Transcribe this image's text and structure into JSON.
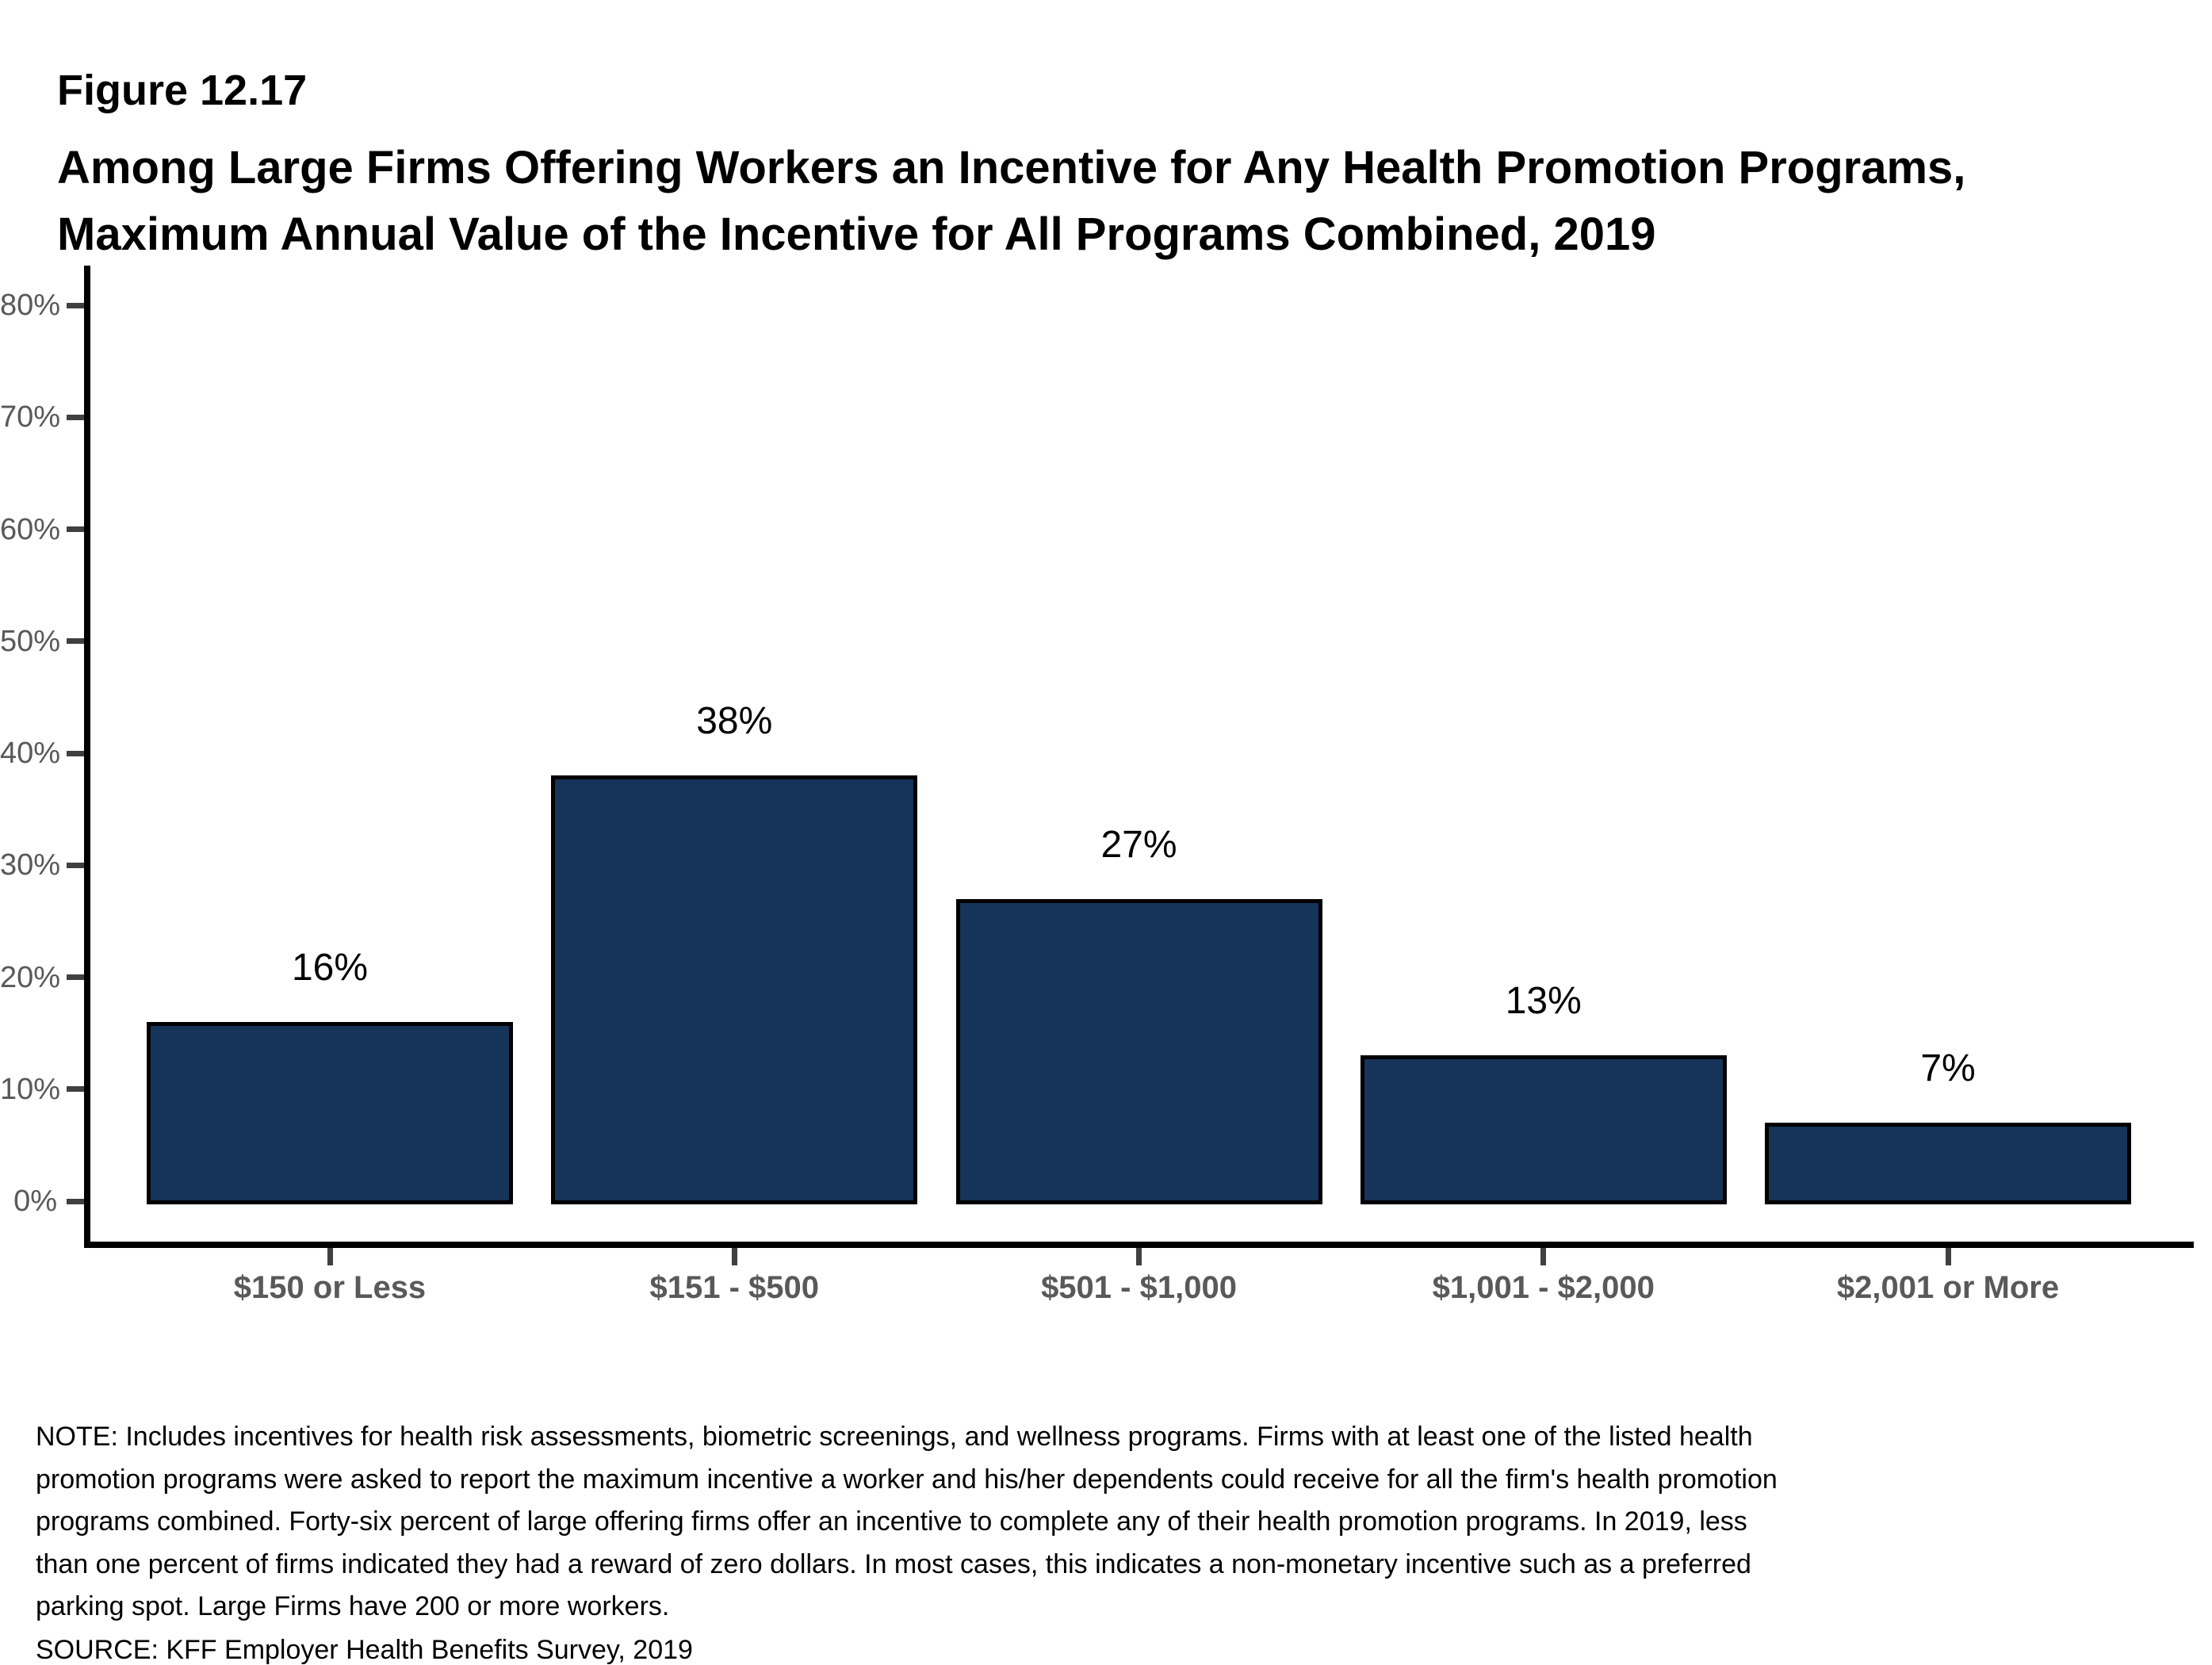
{
  "figure_label": "Figure 12.17",
  "title_lines": [
    "Among Large Firms Offering Workers an Incentive for Any Health Promotion Programs,",
    "Maximum Annual Value of the Incentive for All Programs Combined, 2019"
  ],
  "chart_data": {
    "type": "bar",
    "categories": [
      "$150 or Less",
      "$151 - $500",
      "$501 - $1,000",
      "$1,001 - $2,000",
      "$2,001 or More"
    ],
    "values": [
      16,
      38,
      27,
      13,
      7
    ],
    "value_labels": [
      "16%",
      "38%",
      "27%",
      "13%",
      "7%"
    ],
    "title": "Among Large Firms Offering Workers an Incentive for Any Health Promotion Programs, Maximum Annual Value of the Incentive for All Programs Combined, 2019",
    "xlabel": "",
    "ylabel": "",
    "ylim": [
      0,
      80
    ],
    "y_tick_step": 10,
    "y_tick_labels": [
      "0%",
      "10%",
      "20%",
      "30%",
      "40%",
      "50%",
      "60%",
      "70%",
      "80%"
    ],
    "grid": false,
    "legend": "none",
    "colors": {
      "bar_fill": "#163459",
      "bar_border": "#000000",
      "axis_line": "#000000",
      "tick_mark": "#404040",
      "tick_label": "#595959",
      "category_label": "#595959",
      "value_label": "#000000"
    }
  },
  "note_lines": [
    "NOTE: Includes incentives for health risk assessments, biometric screenings, and wellness programs. Firms with at least one of the listed health",
    "promotion programs were asked to report the maximum incentive a worker and his/her dependents could receive for all the firm's health promotion",
    "programs combined. Forty-six percent of large offering firms offer an incentive to complete any of their health promotion programs. In 2019, less",
    "than one percent of firms indicated they had a reward of zero dollars. In most cases, this indicates a non-monetary incentive such as a preferred",
    "parking spot. Large Firms have 200 or more workers."
  ],
  "source": "SOURCE: KFF Employer Health Benefits Survey, 2019"
}
